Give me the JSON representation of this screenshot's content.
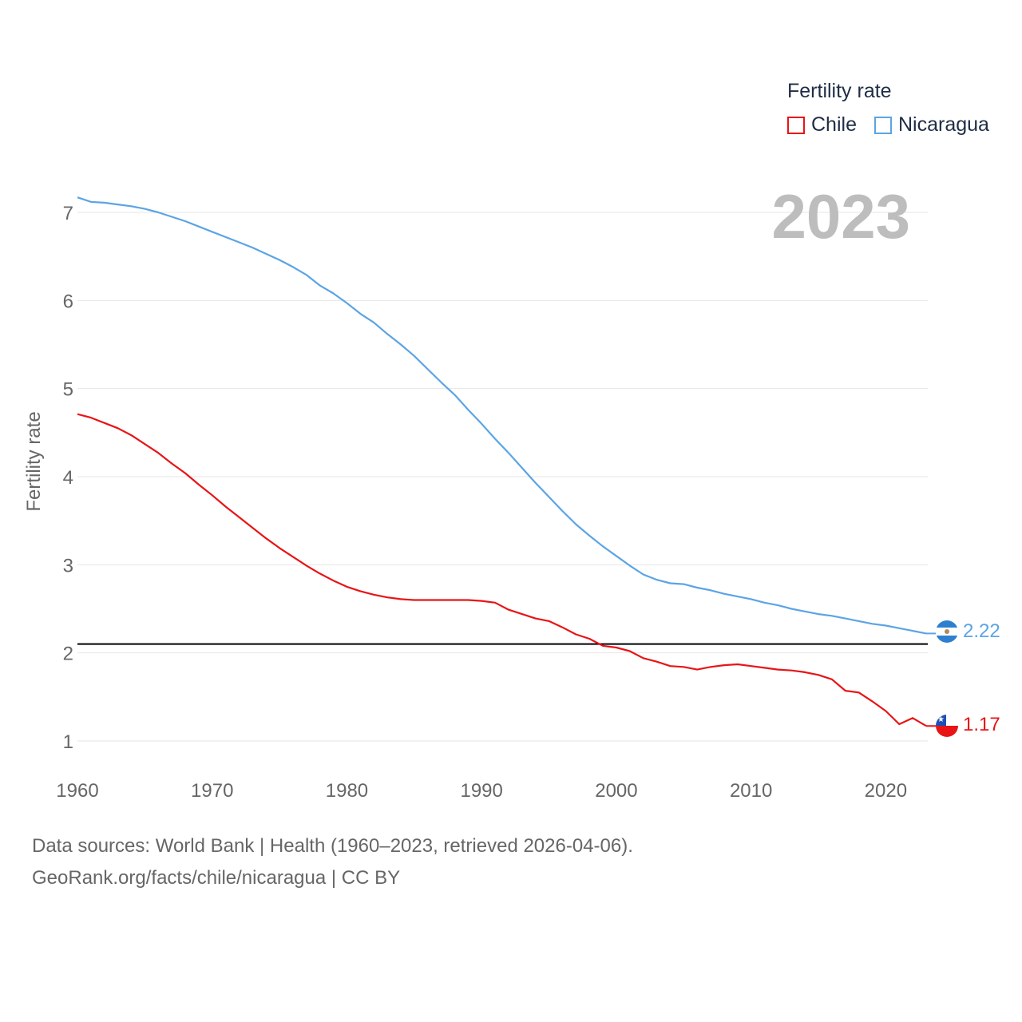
{
  "legend": {
    "title": "Fertility rate",
    "items": [
      {
        "label": "Chile",
        "color": "#e81416"
      },
      {
        "label": "Nicaragua",
        "color": "#5ba4e5"
      }
    ]
  },
  "year_label": "2023",
  "end_labels": {
    "chile": "1.17",
    "nicaragua": "2.22"
  },
  "footer": {
    "line1": "Data sources: World Bank | Health (1960–2023, retrieved 2026-04-06).",
    "line2": "GeoRank.org/facts/chile/nicaragua | CC BY"
  },
  "chart_data": {
    "type": "line",
    "ylabel": "Fertility rate",
    "xlabel": "",
    "xlim": [
      1960,
      2023
    ],
    "ylim": [
      1,
      7
    ],
    "x_ticks": [
      1960,
      1970,
      1980,
      1990,
      2000,
      2010,
      2020
    ],
    "y_ticks": [
      1,
      2,
      3,
      4,
      5,
      6,
      7
    ],
    "reference_line": 2.1,
    "x": [
      1960,
      1961,
      1962,
      1963,
      1964,
      1965,
      1966,
      1967,
      1968,
      1969,
      1970,
      1971,
      1972,
      1973,
      1974,
      1975,
      1976,
      1977,
      1978,
      1979,
      1980,
      1981,
      1982,
      1983,
      1984,
      1985,
      1986,
      1987,
      1988,
      1989,
      1990,
      1991,
      1992,
      1993,
      1994,
      1995,
      1996,
      1997,
      1998,
      1999,
      2000,
      2001,
      2002,
      2003,
      2004,
      2005,
      2006,
      2007,
      2008,
      2009,
      2010,
      2011,
      2012,
      2013,
      2014,
      2015,
      2016,
      2017,
      2018,
      2019,
      2020,
      2021,
      2022,
      2023
    ],
    "series": [
      {
        "name": "Chile",
        "color": "#e81416",
        "values": [
          4.71,
          4.67,
          4.61,
          4.55,
          4.47,
          4.37,
          4.27,
          4.15,
          4.04,
          3.91,
          3.79,
          3.66,
          3.54,
          3.42,
          3.3,
          3.19,
          3.09,
          2.99,
          2.9,
          2.82,
          2.75,
          2.7,
          2.66,
          2.63,
          2.61,
          2.6,
          2.6,
          2.6,
          2.6,
          2.6,
          2.59,
          2.57,
          2.49,
          2.44,
          2.39,
          2.36,
          2.29,
          2.21,
          2.16,
          2.08,
          2.06,
          2.02,
          1.94,
          1.9,
          1.85,
          1.84,
          1.81,
          1.84,
          1.86,
          1.87,
          1.85,
          1.83,
          1.81,
          1.8,
          1.78,
          1.75,
          1.7,
          1.57,
          1.55,
          1.45,
          1.34,
          1.19,
          1.26,
          1.17
        ]
      },
      {
        "name": "Nicaragua",
        "color": "#5ba4e5",
        "values": [
          7.17,
          7.12,
          7.11,
          7.09,
          7.07,
          7.04,
          7.0,
          6.95,
          6.9,
          6.84,
          6.78,
          6.72,
          6.66,
          6.6,
          6.53,
          6.46,
          6.38,
          6.29,
          6.17,
          6.08,
          5.97,
          5.85,
          5.75,
          5.62,
          5.5,
          5.37,
          5.22,
          5.07,
          4.93,
          4.76,
          4.6,
          4.43,
          4.27,
          4.1,
          3.93,
          3.77,
          3.61,
          3.46,
          3.33,
          3.21,
          3.1,
          2.99,
          2.89,
          2.83,
          2.79,
          2.78,
          2.74,
          2.71,
          2.67,
          2.64,
          2.61,
          2.57,
          2.54,
          2.5,
          2.47,
          2.44,
          2.42,
          2.39,
          2.36,
          2.33,
          2.31,
          2.28,
          2.25,
          2.22
        ]
      }
    ]
  }
}
